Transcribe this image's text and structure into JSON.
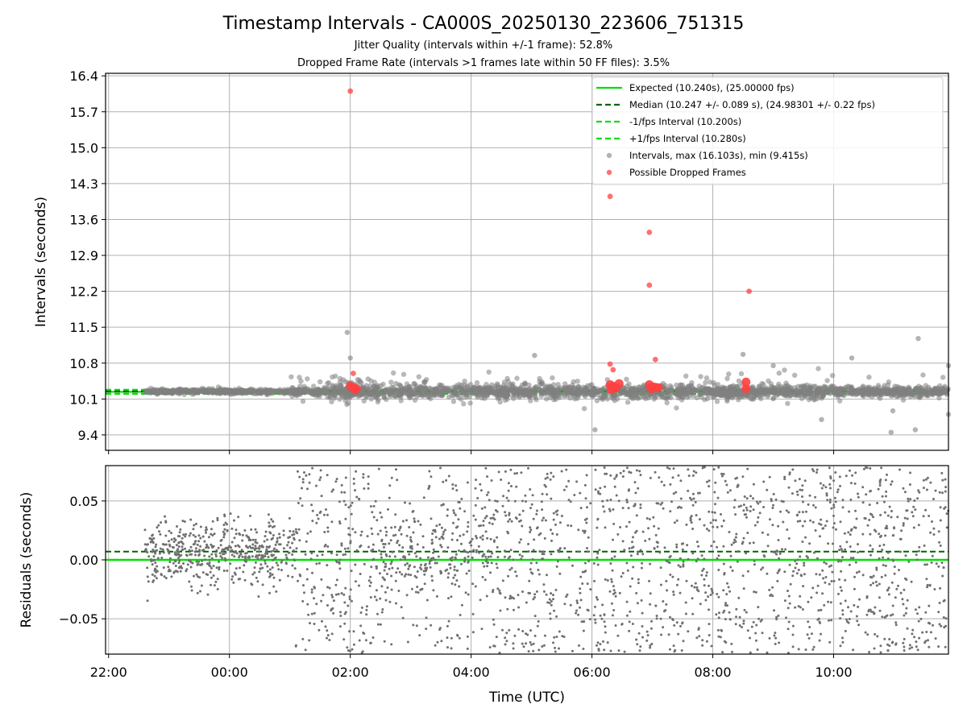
{
  "chart_data": [
    {
      "type": "scatter",
      "title": "Timestamp Intervals - CA000S_20250130_223606_751315",
      "subtitles": [
        "Jitter Quality (intervals within +/-1 frame): 52.8%",
        "Dropped Frame Rate (intervals >1 frames late within 50 FF files): 3.5%"
      ],
      "ylabel": "Intervals (seconds)",
      "xlabel": "",
      "x_unit": "hours since 22:00 UTC",
      "xlim": [
        -0.05,
        13.9
      ],
      "ylim": [
        9.1,
        16.45
      ],
      "yticks": [
        "9.4",
        "10.1",
        "10.8",
        "11.5",
        "12.2",
        "12.9",
        "13.6",
        "14.3",
        "15.0",
        "15.7",
        "16.4"
      ],
      "grid": true,
      "legend_position": "top-right",
      "legend": [
        "Expected (10.240s), (25.00000 fps)",
        "Median (10.247 +/- 0.089 s), (24.98301 +/- 0.22 fps)",
        "-1/fps Interval (10.200s)",
        "+1/fps Interval (10.280s)",
        "Intervals, max (16.103s), min (9.415s)",
        "Possible Dropped Frames"
      ],
      "reference_lines": {
        "expected": 10.24,
        "median": 10.247,
        "minus_one_fps": 10.2,
        "plus_one_fps": 10.28
      },
      "series": [
        {
          "name": "Intervals, max (16.103s), min (9.415s)",
          "color": "#808080",
          "x_start": 0.6,
          "x_end": 13.9,
          "baseline": 10.247,
          "outliers": [
            [
              3.95,
              11.4
            ],
            [
              4.0,
              10.9
            ],
            [
              7.05,
              10.95
            ],
            [
              8.05,
              9.5
            ],
            [
              10.5,
              10.97
            ],
            [
              11.0,
              10.75
            ],
            [
              12.3,
              10.9
            ],
            [
              13.4,
              11.28
            ],
            [
              13.9,
              10.75
            ],
            [
              11.8,
              9.7
            ],
            [
              12.95,
              9.45
            ],
            [
              13.35,
              9.5
            ],
            [
              12.98,
              9.87
            ],
            [
              13.9,
              9.8
            ]
          ]
        },
        {
          "name": "Possible Dropped Frames",
          "color": "#ff4040",
          "points": [
            [
              4.0,
              16.103
            ],
            [
              8.3,
              14.05
            ],
            [
              8.95,
              13.35
            ],
            [
              8.95,
              12.32
            ],
            [
              9.05,
              10.87
            ],
            [
              10.6,
              12.2
            ],
            [
              8.3,
              10.78
            ],
            [
              4.05,
              10.6
            ],
            [
              8.35,
              10.67
            ],
            [
              10.55,
              10.43
            ],
            [
              4.0,
              10.35
            ],
            [
              4.05,
              10.32
            ],
            [
              4.1,
              10.3
            ],
            [
              4.08,
              10.28
            ],
            [
              8.3,
              10.38
            ],
            [
              8.35,
              10.35
            ],
            [
              8.4,
              10.32
            ],
            [
              8.45,
              10.4
            ],
            [
              8.32,
              10.28
            ],
            [
              8.95,
              10.38
            ],
            [
              9.0,
              10.34
            ],
            [
              9.05,
              10.33
            ],
            [
              9.1,
              10.32
            ],
            [
              8.98,
              10.3
            ],
            [
              10.55,
              10.3
            ]
          ]
        }
      ]
    },
    {
      "type": "scatter",
      "title": "",
      "ylabel": "Residuals (seconds)",
      "xlabel": "Time (UTC)",
      "x_unit": "hours since 22:00 UTC",
      "xlim": [
        -0.05,
        13.9
      ],
      "ylim": [
        -0.08,
        0.08
      ],
      "yticks": [
        "−0.05",
        "0.00",
        "0.05"
      ],
      "xticks": [
        "22:00",
        "00:00",
        "02:00",
        "04:00",
        "06:00",
        "08:00",
        "10:00"
      ],
      "grid": true,
      "reference_lines": {
        "expected": 0.0,
        "median": 0.007
      },
      "series": [
        {
          "name": "",
          "color": "#707070",
          "x_start": 0.6,
          "x_end": 13.9
        }
      ]
    }
  ]
}
